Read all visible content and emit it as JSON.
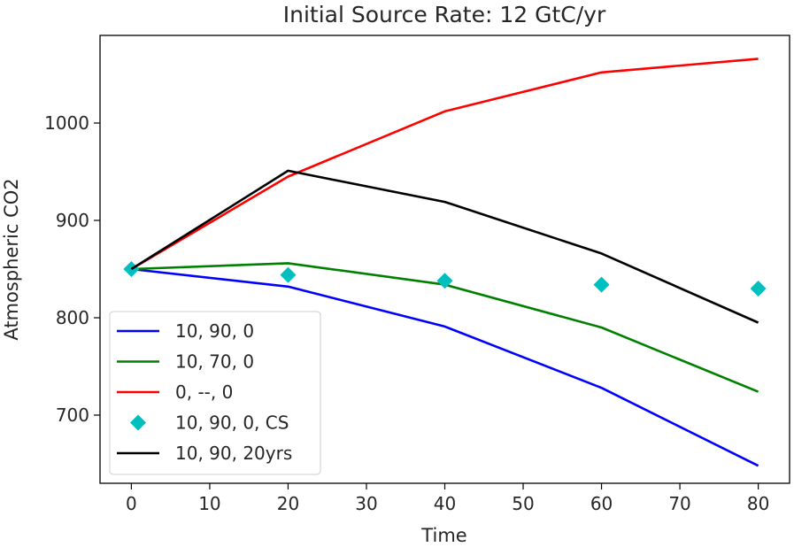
{
  "chart_data": {
    "type": "line",
    "title": "Initial Source Rate: 12 GtC/yr",
    "xlabel": "Time",
    "ylabel": "Atmospheric CO2",
    "xlim": [
      -4,
      84
    ],
    "ylim": [
      630,
      1090
    ],
    "xticks": [
      0,
      10,
      20,
      30,
      40,
      50,
      60,
      70,
      80
    ],
    "yticks": [
      700,
      800,
      900,
      1000
    ],
    "grid": false,
    "legend_position": "lower-left",
    "series": [
      {
        "name": "10, 90, 0",
        "color": "#0000ff",
        "style": "line",
        "x": [
          0,
          20,
          40,
          60,
          80
        ],
        "y": [
          850,
          832,
          791,
          728,
          648
        ]
      },
      {
        "name": "10, 70, 0",
        "color": "#008000",
        "style": "line",
        "x": [
          0,
          20,
          40,
          60,
          80
        ],
        "y": [
          850,
          856,
          834,
          790,
          724
        ]
      },
      {
        "name": "0, --, 0",
        "color": "#ff0000",
        "style": "line",
        "x": [
          0,
          20,
          40,
          60,
          80
        ],
        "y": [
          850,
          945,
          1012,
          1052,
          1066
        ]
      },
      {
        "name": "10, 90, 0, CS",
        "color": "#00bfbf",
        "style": "marker",
        "marker": "diamond",
        "x": [
          0,
          20,
          40,
          60,
          80
        ],
        "y": [
          850,
          844,
          838,
          834,
          830
        ]
      },
      {
        "name": "10, 90, 20yrs",
        "color": "#000000",
        "style": "line",
        "x": [
          0,
          20,
          40,
          60,
          80
        ],
        "y": [
          850,
          951,
          919,
          866,
          795
        ]
      }
    ]
  }
}
